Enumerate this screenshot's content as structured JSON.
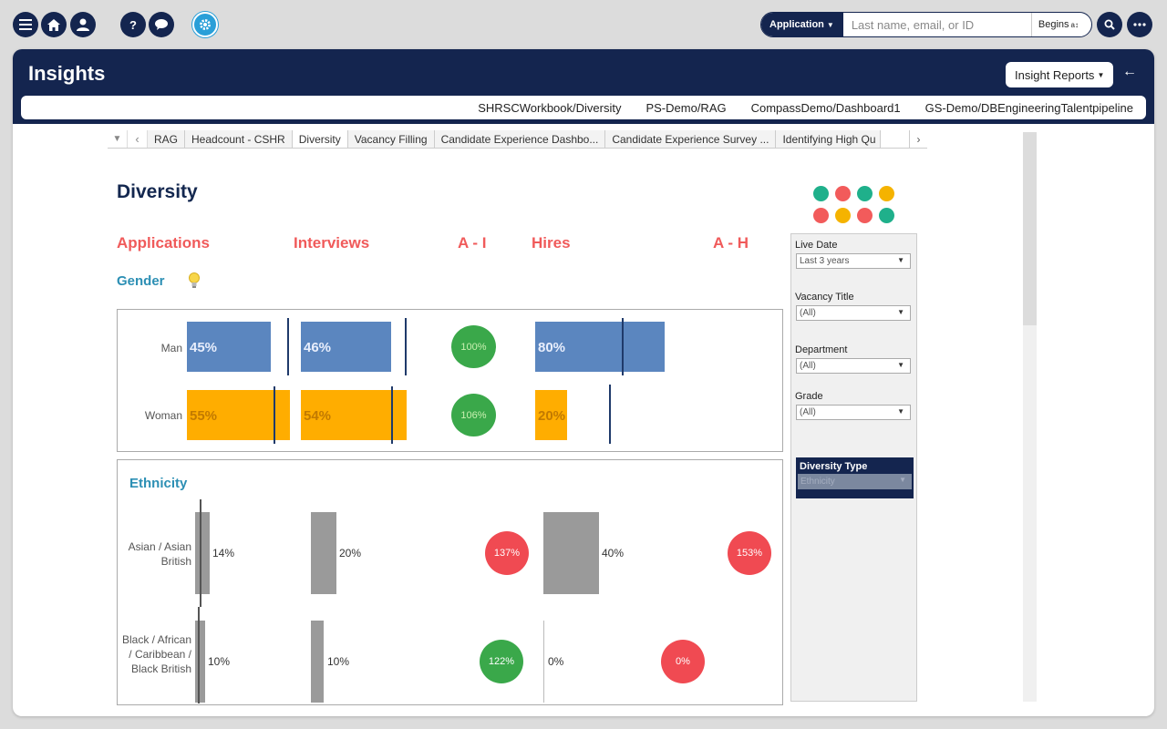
{
  "topbar": {
    "menu_icon": "hamburger-icon",
    "home_icon": "home-icon",
    "user_icon": "user-icon",
    "help_icon": "help-icon",
    "chat_icon": "chat-icon",
    "settings_icon": "gear-icon",
    "search": {
      "scope_label": "Application",
      "placeholder": "Last name, email, or ID",
      "match_mode": "Begins",
      "search_icon": "search-icon"
    },
    "more_icon": "more-icon"
  },
  "page": {
    "title": "Insights",
    "reports_button": "Insight Reports",
    "report_links": [
      "SHRSCWorkbook/Diversity",
      "PS-Demo/RAG",
      "CompassDemo/Dashboard1",
      "GS-Demo/DBEngineeringTalentpipeline"
    ]
  },
  "tabs": [
    "RAG",
    "Headcount - CSHR",
    "Diversity",
    "Vacancy Filling",
    "Candidate Experience Dashbo...",
    "Candidate Experience Survey ...",
    "Identifying High Qu"
  ],
  "active_tab": "Diversity",
  "dashboard": {
    "title": "Diversity",
    "status_dots": [
      "#1fb08b",
      "#f25b5b",
      "#1fb08b",
      "#f5b300",
      "#f25b5b",
      "#f5b300",
      "#f25b5b",
      "#1fb08b"
    ],
    "columns": {
      "applications": "Applications",
      "interviews": "Interviews",
      "a_i": "A - I",
      "hires": "Hires",
      "a_h": "A - H"
    },
    "gender": {
      "label": "Gender",
      "rows": [
        {
          "label": "Man",
          "applications": "45%",
          "interviews": "46%",
          "a_i": "100%",
          "hires": "80%",
          "app_value": 45,
          "int_value": 46,
          "hire_value": 80
        },
        {
          "label": "Woman",
          "applications": "55%",
          "interviews": "54%",
          "a_i": "106%",
          "hires": "20%",
          "app_value": 55,
          "int_value": 54,
          "hire_value": 20
        }
      ]
    },
    "ethnicity": {
      "label": "Ethnicity",
      "rows": [
        {
          "label": "Asian / Asian British",
          "applications": "14%",
          "interviews": "20%",
          "a_i": "137%",
          "hires": "40%",
          "a_h": "153%"
        },
        {
          "label": "Black / African / Caribbean / Black British",
          "applications": "10%",
          "interviews": "10%",
          "a_i": "122%",
          "hires": "0%",
          "a_h": "0%"
        }
      ]
    },
    "colors": {
      "man": "#5b86bf",
      "woman": "#ffad00",
      "green": "#3aa84a",
      "red": "#f04a52",
      "grey": "#9a9a9a",
      "navy": "#14254f"
    }
  },
  "filters": {
    "live_date": {
      "label": "Live Date",
      "value": "Last 3 years"
    },
    "vacancy_title": {
      "label": "Vacancy Title",
      "value": "(All)"
    },
    "department": {
      "label": "Department",
      "value": "(All)"
    },
    "grade": {
      "label": "Grade",
      "value": "(All)"
    },
    "diversity_type": {
      "label": "Diversity Type",
      "value": "Ethnicity"
    }
  }
}
